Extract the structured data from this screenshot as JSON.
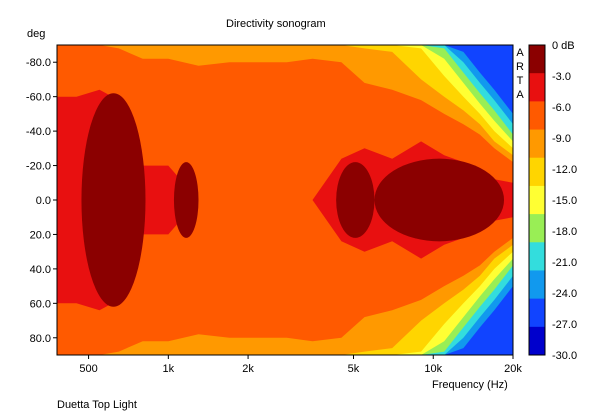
{
  "footer_text": "Duetta Top Light",
  "chart_data": {
    "type": "heatmap",
    "title": "Directivity sonogram",
    "ylabel": "deg",
    "xlabel": "Frequency (Hz)",
    "watermark": [
      "A",
      "R",
      "T",
      "A"
    ],
    "x_scale": "log",
    "xlim": [
      380,
      20000
    ],
    "ylim": [
      -90,
      90
    ],
    "y_ticks": [
      -80,
      -60,
      -40,
      -20,
      0,
      20,
      40,
      60,
      80
    ],
    "y_tick_labels": [
      "-80.0",
      "-60.0",
      "-40.0",
      "-20.0",
      "0.0",
      "20.0",
      "40.0",
      "60.0",
      "80.0"
    ],
    "x_ticks": [
      500,
      1000,
      2000,
      5000,
      10000,
      20000
    ],
    "x_tick_labels": [
      "500",
      "1k",
      "2k",
      "5k",
      "10k",
      "20k"
    ],
    "colorbar": {
      "labels": [
        "0 dB",
        "-3.0",
        "-6.0",
        "-9.0",
        "-12.0",
        "-15.0",
        "-18.0",
        "-21.0",
        "-24.0",
        "-27.0",
        "-30.0"
      ],
      "colors": [
        "#8b0000",
        "#e81010",
        "#ff5a00",
        "#ff9900",
        "#ffd500",
        "#ffff33",
        "#99ee55",
        "#33dddd",
        "#1199ee",
        "#1144ff",
        "#0000cc"
      ]
    },
    "level_boundaries_deg": {
      "freq_hz": [
        380,
        450,
        550,
        650,
        800,
        1000,
        1300,
        1700,
        2200,
        2800,
        3500,
        4500,
        5500,
        7000,
        9000,
        11000,
        13000,
        15000,
        17000,
        20000
      ],
      "minus3dB": [
        60,
        60,
        64,
        58,
        20,
        20,
        0,
        0,
        0,
        0,
        0,
        24,
        30,
        24,
        34,
        26,
        22,
        18,
        12,
        10
      ],
      "minus6dB": [
        90,
        90,
        90,
        88,
        82,
        82,
        78,
        80,
        80,
        80,
        82,
        80,
        68,
        64,
        58,
        50,
        44,
        38,
        30,
        22
      ],
      "minus9dB": [
        90,
        90,
        90,
        90,
        90,
        90,
        90,
        90,
        90,
        90,
        90,
        90,
        88,
        86,
        70,
        60,
        52,
        44,
        34,
        26
      ],
      "minus12dB": [
        90,
        90,
        90,
        90,
        90,
        90,
        90,
        90,
        90,
        90,
        90,
        90,
        90,
        90,
        88,
        72,
        60,
        50,
        40,
        30
      ],
      "minus15dB": [
        90,
        90,
        90,
        90,
        90,
        90,
        90,
        90,
        90,
        90,
        90,
        90,
        90,
        90,
        90,
        82,
        68,
        56,
        46,
        34
      ],
      "minus18dB": [
        90,
        90,
        90,
        90,
        90,
        90,
        90,
        90,
        90,
        90,
        90,
        90,
        90,
        90,
        90,
        88,
        74,
        62,
        52,
        38
      ],
      "minus21dB": [
        90,
        90,
        90,
        90,
        90,
        90,
        90,
        90,
        90,
        90,
        90,
        90,
        90,
        90,
        90,
        90,
        80,
        68,
        58,
        44
      ],
      "minus24dB": [
        90,
        90,
        90,
        90,
        90,
        90,
        90,
        90,
        90,
        90,
        90,
        90,
        90,
        90,
        90,
        90,
        86,
        74,
        64,
        50
      ]
    },
    "grid": false
  }
}
